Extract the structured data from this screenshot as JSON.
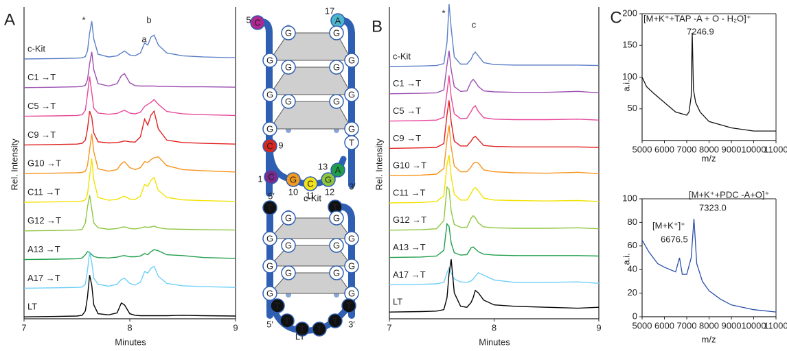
{
  "chart_data": [
    {
      "type": "line",
      "panel_label": "A",
      "xlabel": "Minutes",
      "ylabel": "Rel. Intensity",
      "xlim": [
        7,
        9
      ],
      "xticks": [
        7,
        8,
        9
      ],
      "annotations": [
        "*",
        "a",
        "b"
      ],
      "x": [
        7.0,
        7.3,
        7.5,
        7.55,
        7.58,
        7.6,
        7.62,
        7.64,
        7.66,
        7.7,
        7.8,
        7.88,
        7.92,
        7.95,
        8.0,
        8.05,
        8.1,
        8.14,
        8.17,
        8.2,
        8.23,
        8.27,
        8.35,
        8.5,
        8.7,
        9.0
      ],
      "series": [
        {
          "name": "c-Kit",
          "color": "#5b7fc7",
          "values": [
            0,
            0.01,
            0.02,
            0.03,
            0.06,
            0.2,
            0.65,
            0.95,
            0.5,
            0.12,
            0.05,
            0.08,
            0.15,
            0.2,
            0.1,
            0.08,
            0.15,
            0.4,
            0.35,
            0.55,
            0.6,
            0.35,
            0.15,
            0.08,
            0.05,
            0.03
          ]
        },
        {
          "name": "C1 →T",
          "color": "#9b4fb0",
          "values": [
            0,
            0.01,
            0.02,
            0.03,
            0.06,
            0.2,
            0.6,
            0.9,
            0.45,
            0.1,
            0.04,
            0.1,
            0.3,
            0.35,
            0.12,
            0.05,
            0.04,
            0.04,
            0.04,
            0.04,
            0.04,
            0.03,
            0.03,
            0.02,
            0.02,
            0.01
          ]
        },
        {
          "name": "C5 →T",
          "color": "#e8489a",
          "values": [
            0,
            0.01,
            0.02,
            0.04,
            0.15,
            0.55,
            1.0,
            0.6,
            0.2,
            0.08,
            0.05,
            0.07,
            0.12,
            0.15,
            0.08,
            0.06,
            0.1,
            0.25,
            0.3,
            0.35,
            0.42,
            0.3,
            0.12,
            0.06,
            0.04,
            0.02
          ]
        },
        {
          "name": "C9 →T",
          "color": "#e02020",
          "values": [
            0,
            0.01,
            0.02,
            0.04,
            0.12,
            0.4,
            0.85,
            0.7,
            0.3,
            0.08,
            0.05,
            0.06,
            0.08,
            0.1,
            0.08,
            0.07,
            0.2,
            0.65,
            0.5,
            0.75,
            0.85,
            0.4,
            0.12,
            0.06,
            0.04,
            0.02
          ]
        },
        {
          "name": "G10 →T",
          "color": "#f7941d",
          "values": [
            0,
            0.01,
            0.02,
            0.03,
            0.06,
            0.2,
            0.6,
            1.0,
            0.55,
            0.12,
            0.06,
            0.1,
            0.25,
            0.3,
            0.15,
            0.1,
            0.15,
            0.3,
            0.28,
            0.35,
            0.4,
            0.42,
            0.2,
            0.1,
            0.07,
            0.04
          ]
        },
        {
          "name": "C11 →T",
          "color": "#f2e200",
          "values": [
            0,
            0.01,
            0.02,
            0.03,
            0.06,
            0.2,
            0.65,
            1.1,
            0.55,
            0.12,
            0.05,
            0.07,
            0.12,
            0.15,
            0.08,
            0.07,
            0.15,
            0.45,
            0.4,
            0.55,
            0.62,
            0.3,
            0.12,
            0.06,
            0.04,
            0.02
          ]
        },
        {
          "name": "G12 →T",
          "color": "#8dc63f",
          "values": [
            0,
            0.01,
            0.02,
            0.04,
            0.2,
            0.6,
            0.9,
            0.55,
            0.2,
            0.08,
            0.04,
            0.06,
            0.09,
            0.1,
            0.06,
            0.05,
            0.07,
            0.1,
            0.09,
            0.1,
            0.12,
            0.08,
            0.05,
            0.04,
            0.03,
            0.02
          ]
        },
        {
          "name": "A13 →T",
          "color": "#1f9e4a",
          "values": [
            0,
            0.01,
            0.02,
            0.04,
            0.12,
            0.2,
            0.18,
            0.12,
            0.08,
            0.05,
            0.04,
            0.06,
            0.09,
            0.1,
            0.07,
            0.07,
            0.09,
            0.15,
            0.12,
            0.2,
            0.25,
            0.22,
            0.12,
            0.1,
            0.05,
            0.03
          ]
        },
        {
          "name": "A17 →T",
          "color": "#6dcff6",
          "values": [
            0,
            0.01,
            0.02,
            0.03,
            0.1,
            0.45,
            0.9,
            0.65,
            0.25,
            0.1,
            0.05,
            0.1,
            0.22,
            0.25,
            0.12,
            0.08,
            0.15,
            0.42,
            0.38,
            0.5,
            0.55,
            0.3,
            0.12,
            0.06,
            0.04,
            0.02
          ]
        },
        {
          "name": "LT",
          "color": "#000000",
          "values": [
            0,
            0.01,
            0.02,
            0.04,
            0.15,
            0.5,
            1.05,
            0.8,
            0.3,
            0.08,
            0.05,
            0.1,
            0.35,
            0.3,
            0.08,
            0.04,
            0.03,
            0.03,
            0.03,
            0.03,
            0.03,
            0.03,
            0.03,
            0.04,
            0.03,
            0.02
          ]
        }
      ]
    },
    {
      "type": "line",
      "panel_label": "B",
      "xlabel": "Minutes",
      "ylabel": "Rel. Intensity",
      "xlim": [
        7,
        9
      ],
      "xticks": [
        7,
        8,
        9
      ],
      "annotations": [
        "*",
        "c"
      ],
      "x": [
        7.0,
        7.3,
        7.45,
        7.52,
        7.55,
        7.57,
        7.59,
        7.62,
        7.68,
        7.74,
        7.78,
        7.8,
        7.82,
        7.85,
        7.9,
        8.0,
        8.2,
        8.5,
        8.8,
        9.0
      ],
      "series": [
        {
          "name": "c-Kit",
          "color": "#5b7fc7",
          "values": [
            0,
            0.01,
            0.02,
            0.06,
            0.5,
            1.3,
            0.8,
            0.2,
            0.05,
            0.05,
            0.15,
            0.25,
            0.3,
            0.22,
            0.08,
            0.04,
            0.03,
            0.03,
            0.03,
            0.02
          ]
        },
        {
          "name": "C1 →T",
          "color": "#9b4fb0",
          "values": [
            0,
            0.01,
            0.02,
            0.08,
            0.6,
            0.9,
            0.5,
            0.15,
            0.05,
            0.06,
            0.25,
            0.3,
            0.25,
            0.15,
            0.06,
            0.04,
            0.03,
            0.03,
            0.05,
            0.02
          ]
        },
        {
          "name": "C5 →T",
          "color": "#e8489a",
          "values": [
            0,
            0.01,
            0.02,
            0.08,
            0.6,
            0.95,
            0.5,
            0.15,
            0.05,
            0.06,
            0.2,
            0.28,
            0.32,
            0.2,
            0.07,
            0.04,
            0.03,
            0.03,
            0.04,
            0.02
          ]
        },
        {
          "name": "C9 →T",
          "color": "#e02020",
          "values": [
            0,
            0.01,
            0.02,
            0.1,
            0.7,
            1.0,
            0.55,
            0.15,
            0.05,
            0.05,
            0.15,
            0.22,
            0.25,
            0.18,
            0.06,
            0.04,
            0.03,
            0.03,
            0.03,
            0.02
          ]
        },
        {
          "name": "G10 →T",
          "color": "#f7941d",
          "values": [
            0,
            0.01,
            0.03,
            0.15,
            0.75,
            1.05,
            0.6,
            0.2,
            0.08,
            0.08,
            0.18,
            0.25,
            0.28,
            0.26,
            0.12,
            0.08,
            0.06,
            0.05,
            0.07,
            0.04
          ]
        },
        {
          "name": "C11 →T",
          "color": "#f2e200",
          "values": [
            0,
            0.01,
            0.03,
            0.15,
            0.8,
            1.0,
            0.55,
            0.18,
            0.06,
            0.06,
            0.2,
            0.28,
            0.32,
            0.25,
            0.1,
            0.06,
            0.05,
            0.04,
            0.05,
            0.03
          ]
        },
        {
          "name": "G12 →T",
          "color": "#8dc63f",
          "values": [
            0,
            0.01,
            0.03,
            0.2,
            0.9,
            0.85,
            0.4,
            0.12,
            0.06,
            0.06,
            0.25,
            0.3,
            0.26,
            0.15,
            0.07,
            0.05,
            0.04,
            0.04,
            0.05,
            0.03
          ]
        },
        {
          "name": "A13 →T",
          "color": "#1f9e4a",
          "values": [
            0,
            0.01,
            0.03,
            0.15,
            0.7,
            0.65,
            0.3,
            0.1,
            0.05,
            0.06,
            0.2,
            0.22,
            0.18,
            0.12,
            0.07,
            0.05,
            0.04,
            0.04,
            0.04,
            0.03
          ]
        },
        {
          "name": "A17 →T",
          "color": "#6dcff6",
          "values": [
            0,
            0.01,
            0.02,
            0.05,
            0.25,
            0.35,
            0.25,
            0.12,
            0.06,
            0.05,
            0.08,
            0.12,
            0.18,
            0.25,
            0.2,
            0.1,
            0.05,
            0.05,
            0.06,
            0.03
          ]
        },
        {
          "name": "LT",
          "color": "#000000",
          "values": [
            0,
            0.01,
            0.02,
            0.05,
            0.3,
            0.8,
            1.1,
            0.4,
            0.12,
            0.1,
            0.2,
            0.3,
            0.45,
            0.4,
            0.25,
            0.15,
            0.12,
            0.1,
            0.08,
            0.1
          ]
        }
      ]
    },
    {
      "type": "line",
      "panel_label": "C",
      "xlabel": "m/z",
      "ylabel": "a.i.",
      "color": "#111111",
      "xlim": [
        5000,
        11000
      ],
      "xticks": [
        5000,
        6000,
        7000,
        8000,
        9000,
        10000,
        11000
      ],
      "ylim": [
        0,
        200
      ],
      "yticks": [
        50,
        100,
        150,
        200
      ],
      "annotations": [
        "[M+K⁺+TAP -A + O  - H₂O]⁺",
        "7246.9"
      ],
      "x": [
        5000,
        5200,
        5500,
        6000,
        6500,
        7000,
        7100,
        7200,
        7246.9,
        7300,
        7400,
        7600,
        8000,
        8500,
        9000,
        10000,
        11000
      ],
      "values": [
        100,
        85,
        75,
        60,
        45,
        40,
        45,
        70,
        170,
        80,
        60,
        45,
        30,
        25,
        20,
        15,
        15
      ]
    },
    {
      "type": "line",
      "xlabel": "m/z",
      "ylabel": "a.i.",
      "color": "#2a4fa8",
      "xlim": [
        5000,
        11000
      ],
      "xticks": [
        5000,
        6000,
        7000,
        8000,
        9000,
        10000,
        11000
      ],
      "ylim": [
        0,
        100
      ],
      "yticks": [
        0,
        20,
        40,
        60,
        80,
        100
      ],
      "annotations": [
        "[M+K⁺+PDC -A+O]⁺",
        "7323.0",
        "[M+K⁺]⁺",
        "6676.5"
      ],
      "x": [
        5000,
        5300,
        5700,
        6000,
        6500,
        6676.5,
        6800,
        7000,
        7200,
        7323,
        7450,
        7700,
        8000,
        8500,
        9000,
        10000,
        11000
      ],
      "values": [
        65,
        55,
        45,
        42,
        38,
        50,
        36,
        36,
        50,
        83,
        45,
        30,
        22,
        15,
        10,
        6,
        4
      ]
    }
  ],
  "diagrams": {
    "ckit": {
      "nodes": [
        "C",
        "A",
        "G",
        "G",
        "G",
        "G",
        "G",
        "G",
        "G",
        "G",
        "G",
        "G",
        "G",
        "G",
        "C",
        "C",
        "G",
        "C",
        "G",
        "A",
        "T"
      ],
      "numbers": [
        "5",
        "17",
        "9",
        "13",
        "1",
        "10",
        "11",
        "12"
      ],
      "five": "5′",
      "three": "3′",
      "name": "c-Kit"
    },
    "lt": {
      "nodes": [
        "T",
        "T",
        "G",
        "G",
        "G",
        "G",
        "G",
        "G",
        "G",
        "G",
        "G",
        "G",
        "G",
        "G",
        "T",
        "T",
        "T",
        "T",
        "T",
        "T"
      ],
      "five": "5′",
      "three": "3′",
      "name": "LT"
    }
  }
}
